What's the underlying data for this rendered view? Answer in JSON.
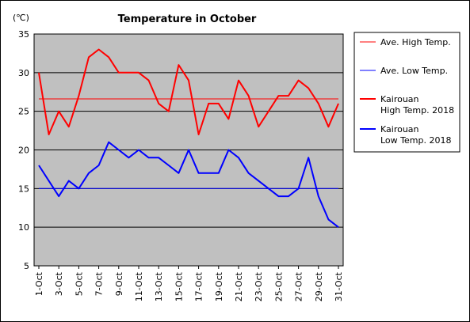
{
  "chart_data": {
    "type": "line",
    "title": "Temperature in October",
    "unit_label": "(℃)",
    "ylim": [
      5,
      35
    ],
    "yticks": [
      5,
      10,
      15,
      20,
      25,
      30,
      35
    ],
    "x_tick_labels": [
      "1-Oct",
      "3-Oct",
      "5-Oct",
      "7-Oct",
      "9-Oct",
      "11-Oct",
      "13-Oct",
      "15-Oct",
      "17-Oct",
      "19-Oct",
      "21-Oct",
      "23-Oct",
      "25-Oct",
      "27-Oct",
      "29-Oct",
      "31-Oct"
    ],
    "x": [
      1,
      2,
      3,
      4,
      5,
      6,
      7,
      8,
      9,
      10,
      11,
      12,
      13,
      14,
      15,
      16,
      17,
      18,
      19,
      20,
      21,
      22,
      23,
      24,
      25,
      26,
      27,
      28,
      29,
      30,
      31
    ],
    "plot_background": "#c0c0c0",
    "grid": "horizontal",
    "legend_position": "right",
    "series": [
      {
        "name": "Ave. High Temp.",
        "color": "#ff0000",
        "width": 1,
        "constant": 26.6
      },
      {
        "name": "Ave. Low Temp.",
        "color": "#0000ff",
        "width": 1,
        "constant": 15.0
      },
      {
        "name": "Kairouan\nHigh Temp. 2018",
        "color": "#ff0000",
        "width": 2,
        "values": [
          30,
          22,
          25,
          23,
          27,
          32,
          33,
          32,
          30,
          30,
          30,
          29,
          26,
          25,
          31,
          29,
          22,
          26,
          26,
          24,
          29,
          27,
          23,
          25,
          27,
          27,
          29,
          28,
          26,
          23,
          26
        ]
      },
      {
        "name": "Kairouan\nLow Temp. 2018",
        "color": "#0000ff",
        "width": 2,
        "values": [
          18,
          16,
          14,
          16,
          15,
          17,
          18,
          21,
          20,
          19,
          20,
          19,
          19,
          18,
          17,
          20,
          17,
          17,
          17,
          20,
          19,
          17,
          16,
          15,
          14,
          14,
          15,
          19,
          14,
          11,
          10
        ]
      }
    ]
  }
}
